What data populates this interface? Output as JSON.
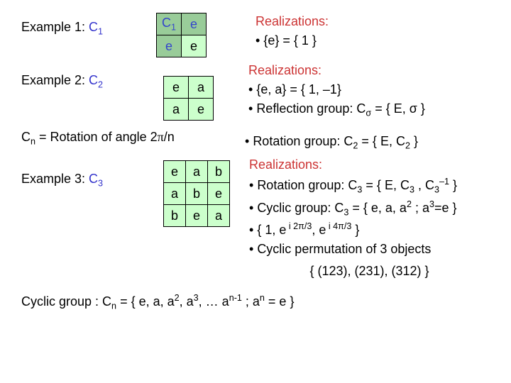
{
  "colors": {
    "title_red": "#cc3333",
    "group_blue": "#3333cc",
    "header_bg": "#99cc99",
    "body_bg": "#ccffcc",
    "border": "#000000",
    "text": "#000000"
  },
  "ex1": {
    "label_prefix": "Example 1:  ",
    "label_group_html": "C<sub>1</sub>",
    "table": {
      "cells": [
        [
          "C<sub>1</sub>",
          "e"
        ],
        [
          "e",
          "e"
        ]
      ],
      "header_row": 0,
      "header_col": 0
    },
    "realiz_title": "Realizations:",
    "bullets": [
      "{e} = { 1 }"
    ]
  },
  "ex2": {
    "label_prefix": "Example 2:  ",
    "label_group_html": "C<sub>2</sub>",
    "table": {
      "cells": [
        [
          "e",
          "a"
        ],
        [
          "a",
          "e"
        ]
      ]
    },
    "realiz_title": "Realizations:",
    "bullets": [
      "{e, a} = { 1, –1}",
      " Reflection group:  C<sub>σ</sub> = { E, σ }"
    ],
    "rotation_line_html": "C<sub>n</sub> = Rotation of angle  2<span class=\"sym\">π</span>/n",
    "rotation_bullet_html": "Rotation group:  C<sub>2</sub> = { E, C<sub>2</sub> }"
  },
  "ex3": {
    "label_prefix": "Example 3:  ",
    "label_group_html": "C<sub>3</sub>",
    "table": {
      "cells": [
        [
          "e",
          "a",
          "b"
        ],
        [
          "a",
          "b",
          "e"
        ],
        [
          "b",
          "e",
          "a"
        ]
      ]
    },
    "realiz_title": "Realizations:",
    "bullets_html": [
      " Rotation group:  C<sub>3</sub> = { E, C<sub>3</sub> , C<sub>3</sub><sup>–1</sup> }",
      " Cyclic group: C<sub>3</sub> = { e, a, a<sup>2</sup> ;  a<sup>3</sup>=e }",
      " { 1, e<sup> i 2π/3</sup>, e<sup> i 4π/3</sup> }",
      " Cyclic permutation of 3 objects"
    ],
    "perm_set": "{  (123), (231), (312) }"
  },
  "footer_html": "Cyclic group :  C<sub>n</sub> = { e, a, a<sup>2</sup>, a<sup>3</sup>, … a<sup>n-1</sup> ; a<sup>n</sup> = e }"
}
